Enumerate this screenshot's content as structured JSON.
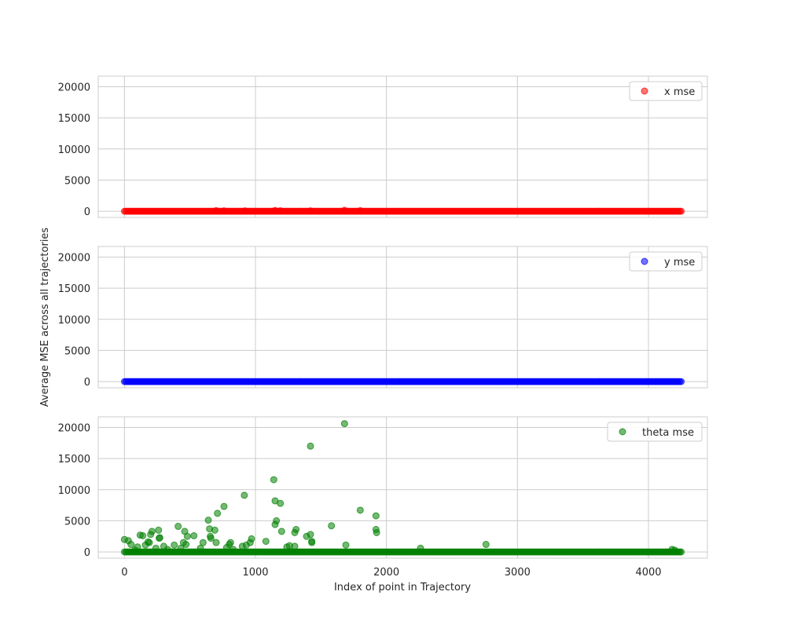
{
  "figure": {
    "xlabel": "Index of point in Trajectory",
    "ylabel": "Average MSE across all trajectories"
  },
  "chart_data": [
    {
      "type": "scatter",
      "title": "",
      "xlabel": "",
      "ylabel": "",
      "xlim": [
        -200,
        4450
      ],
      "ylim": [
        -1000,
        21700
      ],
      "xticks": [
        0,
        1000,
        2000,
        3000,
        4000
      ],
      "yticks": [
        0,
        5000,
        10000,
        15000,
        20000
      ],
      "grid": true,
      "legend_position": "top-right",
      "series": [
        {
          "name": "x mse",
          "color": "#ff0000",
          "x_range": [
            0,
            4250
          ],
          "baseline_value": 0,
          "points": [
            [
              700,
              80
            ],
            [
              760,
              60
            ],
            [
              920,
              50
            ],
            [
              1150,
              120
            ],
            [
              1190,
              70
            ],
            [
              1420,
              60
            ],
            [
              1680,
              150
            ],
            [
              1800,
              80
            ]
          ]
        }
      ]
    },
    {
      "type": "scatter",
      "title": "",
      "xlabel": "",
      "ylabel": "",
      "xlim": [
        -200,
        4450
      ],
      "ylim": [
        -1000,
        21700
      ],
      "xticks": [
        0,
        1000,
        2000,
        3000,
        4000
      ],
      "yticks": [
        0,
        5000,
        10000,
        15000,
        20000
      ],
      "grid": true,
      "legend_position": "top-right",
      "series": [
        {
          "name": "y mse",
          "color": "#0000ff",
          "x_range": [
            0,
            4250
          ],
          "baseline_value": 0,
          "points": []
        }
      ]
    },
    {
      "type": "scatter",
      "title": "",
      "xlabel": "",
      "ylabel": "",
      "xlim": [
        -200,
        4450
      ],
      "ylim": [
        -1000,
        21700
      ],
      "xticks": [
        0,
        1000,
        2000,
        3000,
        4000
      ],
      "yticks": [
        0,
        5000,
        10000,
        15000,
        20000
      ],
      "grid": true,
      "legend_position": "top-right",
      "series": [
        {
          "name": "theta mse",
          "color": "#008000",
          "x_range": [
            0,
            4250
          ],
          "baseline_value": 0,
          "points": [
            [
              0,
              2000
            ],
            [
              30,
              1800
            ],
            [
              50,
              1200
            ],
            [
              80,
              300
            ],
            [
              100,
              800
            ],
            [
              120,
              2700
            ],
            [
              140,
              2600
            ],
            [
              160,
              1100
            ],
            [
              180,
              1600
            ],
            [
              190,
              1500
            ],
            [
              200,
              2800
            ],
            [
              210,
              3300
            ],
            [
              240,
              600
            ],
            [
              260,
              3500
            ],
            [
              265,
              2200
            ],
            [
              270,
              2300
            ],
            [
              300,
              900
            ],
            [
              330,
              400
            ],
            [
              380,
              1100
            ],
            [
              410,
              4100
            ],
            [
              430,
              600
            ],
            [
              450,
              1500
            ],
            [
              460,
              3300
            ],
            [
              470,
              1200
            ],
            [
              480,
              2500
            ],
            [
              530,
              2600
            ],
            [
              580,
              600
            ],
            [
              600,
              1500
            ],
            [
              640,
              5100
            ],
            [
              650,
              3700
            ],
            [
              655,
              2500
            ],
            [
              660,
              2200
            ],
            [
              690,
              3500
            ],
            [
              700,
              1500
            ],
            [
              710,
              6200
            ],
            [
              760,
              7300
            ],
            [
              780,
              700
            ],
            [
              800,
              1200
            ],
            [
              810,
              1500
            ],
            [
              830,
              400
            ],
            [
              900,
              900
            ],
            [
              915,
              9100
            ],
            [
              930,
              1100
            ],
            [
              960,
              1500
            ],
            [
              970,
              2100
            ],
            [
              1080,
              1700
            ],
            [
              1140,
              11600
            ],
            [
              1150,
              8200
            ],
            [
              1150,
              4400
            ],
            [
              1160,
              5000
            ],
            [
              1190,
              7800
            ],
            [
              1200,
              3300
            ],
            [
              1240,
              800
            ],
            [
              1260,
              1000
            ],
            [
              1300,
              3100
            ],
            [
              1310,
              3600
            ],
            [
              1300,
              900
            ],
            [
              1390,
              2500
            ],
            [
              1420,
              17000
            ],
            [
              1420,
              2800
            ],
            [
              1430,
              1700
            ],
            [
              1430,
              1500
            ],
            [
              1580,
              4200
            ],
            [
              1680,
              20600
            ],
            [
              1690,
              1100
            ],
            [
              1800,
              6700
            ],
            [
              1920,
              5800
            ],
            [
              1920,
              3600
            ],
            [
              1925,
              3100
            ],
            [
              2260,
              600
            ],
            [
              2760,
              1200
            ],
            [
              4180,
              400
            ],
            [
              4200,
              300
            ]
          ]
        }
      ]
    }
  ]
}
